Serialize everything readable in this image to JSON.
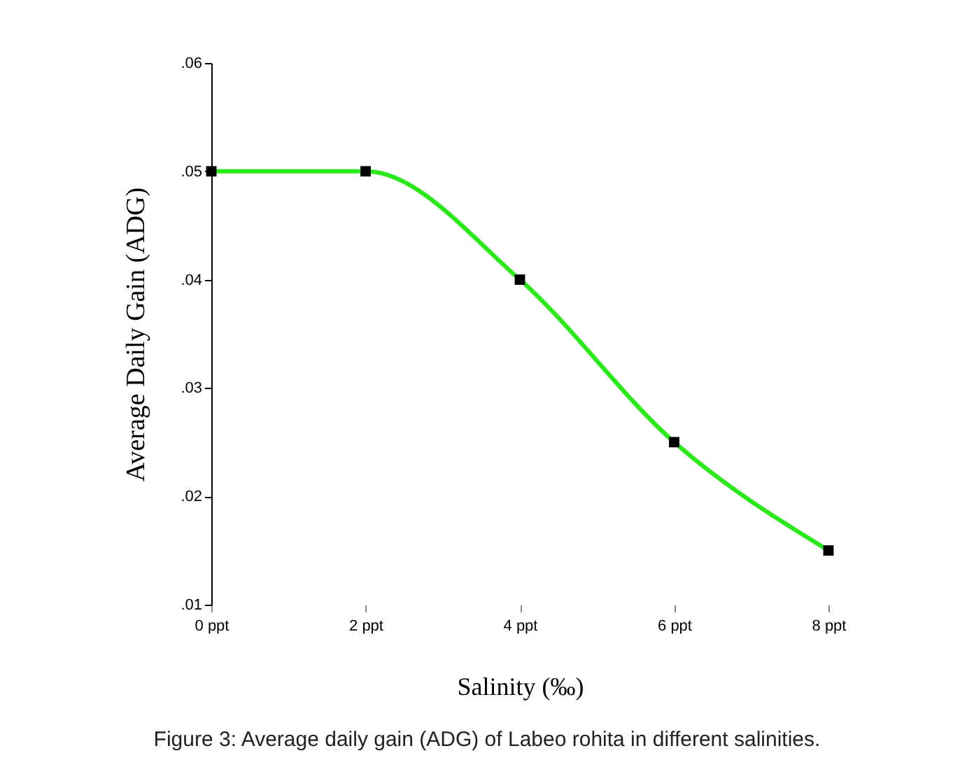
{
  "chart_data": {
    "type": "line",
    "xlabel": "Salinity (‰)",
    "ylabel": "Average Daily Gain (ADG)",
    "categories": [
      "0 ppt",
      "2 ppt",
      "4 ppt",
      "6 ppt",
      "8 ppt"
    ],
    "series": [
      {
        "color": "#22ee11",
        "values": [
          0.05,
          0.05,
          0.04,
          0.025,
          0.015
        ]
      }
    ],
    "ylim": [
      0.01,
      0.06
    ],
    "yticks": [
      {
        "value": 0.01,
        "label": ".01"
      },
      {
        "value": 0.02,
        "label": ".02"
      },
      {
        "value": 0.03,
        "label": ".03"
      },
      {
        "value": 0.04,
        "label": ".04"
      },
      {
        "value": 0.05,
        "label": ".05"
      },
      {
        "value": 0.06,
        "label": ".06"
      }
    ],
    "marker": "square",
    "line_style": "solid",
    "grid": false,
    "annotations": [
      "Figure 3: Average daily gain (ADG) of Labeo rohita in different salinities."
    ]
  }
}
